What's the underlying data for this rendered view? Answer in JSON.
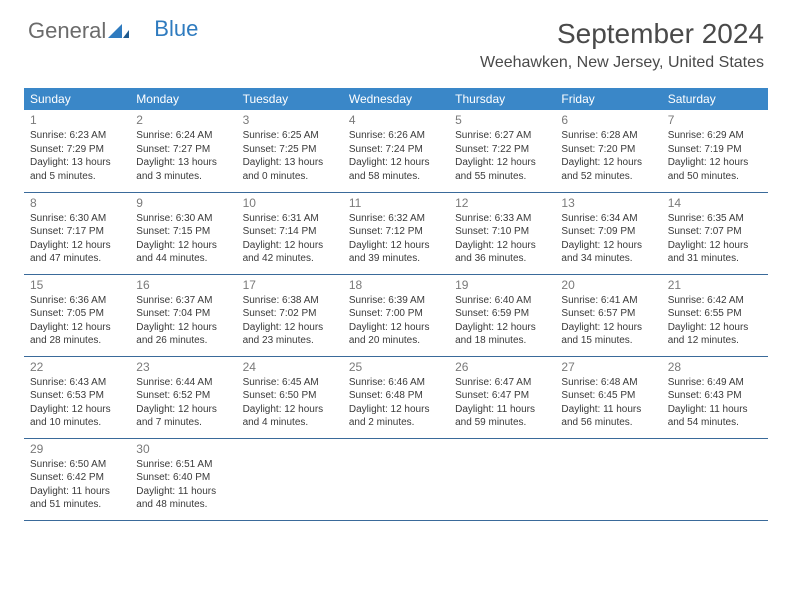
{
  "logo": {
    "text1": "General",
    "text2": "Blue"
  },
  "title": "September 2024",
  "location": "Weehawken, New Jersey, United States",
  "colors": {
    "header_bg": "#3a87c8",
    "header_text": "#ffffff",
    "row_border": "#3a6a9a",
    "daynum": "#7a7a7a",
    "bodytext": "#3a3a3a",
    "logo_gray": "#6b6b6b",
    "logo_blue": "#2f7bbf"
  },
  "daysOfWeek": [
    "Sunday",
    "Monday",
    "Tuesday",
    "Wednesday",
    "Thursday",
    "Friday",
    "Saturday"
  ],
  "weeks": [
    [
      {
        "n": "1",
        "sr": "Sunrise: 6:23 AM",
        "ss": "Sunset: 7:29 PM",
        "dl1": "Daylight: 13 hours",
        "dl2": "and 5 minutes."
      },
      {
        "n": "2",
        "sr": "Sunrise: 6:24 AM",
        "ss": "Sunset: 7:27 PM",
        "dl1": "Daylight: 13 hours",
        "dl2": "and 3 minutes."
      },
      {
        "n": "3",
        "sr": "Sunrise: 6:25 AM",
        "ss": "Sunset: 7:25 PM",
        "dl1": "Daylight: 13 hours",
        "dl2": "and 0 minutes."
      },
      {
        "n": "4",
        "sr": "Sunrise: 6:26 AM",
        "ss": "Sunset: 7:24 PM",
        "dl1": "Daylight: 12 hours",
        "dl2": "and 58 minutes."
      },
      {
        "n": "5",
        "sr": "Sunrise: 6:27 AM",
        "ss": "Sunset: 7:22 PM",
        "dl1": "Daylight: 12 hours",
        "dl2": "and 55 minutes."
      },
      {
        "n": "6",
        "sr": "Sunrise: 6:28 AM",
        "ss": "Sunset: 7:20 PM",
        "dl1": "Daylight: 12 hours",
        "dl2": "and 52 minutes."
      },
      {
        "n": "7",
        "sr": "Sunrise: 6:29 AM",
        "ss": "Sunset: 7:19 PM",
        "dl1": "Daylight: 12 hours",
        "dl2": "and 50 minutes."
      }
    ],
    [
      {
        "n": "8",
        "sr": "Sunrise: 6:30 AM",
        "ss": "Sunset: 7:17 PM",
        "dl1": "Daylight: 12 hours",
        "dl2": "and 47 minutes."
      },
      {
        "n": "9",
        "sr": "Sunrise: 6:30 AM",
        "ss": "Sunset: 7:15 PM",
        "dl1": "Daylight: 12 hours",
        "dl2": "and 44 minutes."
      },
      {
        "n": "10",
        "sr": "Sunrise: 6:31 AM",
        "ss": "Sunset: 7:14 PM",
        "dl1": "Daylight: 12 hours",
        "dl2": "and 42 minutes."
      },
      {
        "n": "11",
        "sr": "Sunrise: 6:32 AM",
        "ss": "Sunset: 7:12 PM",
        "dl1": "Daylight: 12 hours",
        "dl2": "and 39 minutes."
      },
      {
        "n": "12",
        "sr": "Sunrise: 6:33 AM",
        "ss": "Sunset: 7:10 PM",
        "dl1": "Daylight: 12 hours",
        "dl2": "and 36 minutes."
      },
      {
        "n": "13",
        "sr": "Sunrise: 6:34 AM",
        "ss": "Sunset: 7:09 PM",
        "dl1": "Daylight: 12 hours",
        "dl2": "and 34 minutes."
      },
      {
        "n": "14",
        "sr": "Sunrise: 6:35 AM",
        "ss": "Sunset: 7:07 PM",
        "dl1": "Daylight: 12 hours",
        "dl2": "and 31 minutes."
      }
    ],
    [
      {
        "n": "15",
        "sr": "Sunrise: 6:36 AM",
        "ss": "Sunset: 7:05 PM",
        "dl1": "Daylight: 12 hours",
        "dl2": "and 28 minutes."
      },
      {
        "n": "16",
        "sr": "Sunrise: 6:37 AM",
        "ss": "Sunset: 7:04 PM",
        "dl1": "Daylight: 12 hours",
        "dl2": "and 26 minutes."
      },
      {
        "n": "17",
        "sr": "Sunrise: 6:38 AM",
        "ss": "Sunset: 7:02 PM",
        "dl1": "Daylight: 12 hours",
        "dl2": "and 23 minutes."
      },
      {
        "n": "18",
        "sr": "Sunrise: 6:39 AM",
        "ss": "Sunset: 7:00 PM",
        "dl1": "Daylight: 12 hours",
        "dl2": "and 20 minutes."
      },
      {
        "n": "19",
        "sr": "Sunrise: 6:40 AM",
        "ss": "Sunset: 6:59 PM",
        "dl1": "Daylight: 12 hours",
        "dl2": "and 18 minutes."
      },
      {
        "n": "20",
        "sr": "Sunrise: 6:41 AM",
        "ss": "Sunset: 6:57 PM",
        "dl1": "Daylight: 12 hours",
        "dl2": "and 15 minutes."
      },
      {
        "n": "21",
        "sr": "Sunrise: 6:42 AM",
        "ss": "Sunset: 6:55 PM",
        "dl1": "Daylight: 12 hours",
        "dl2": "and 12 minutes."
      }
    ],
    [
      {
        "n": "22",
        "sr": "Sunrise: 6:43 AM",
        "ss": "Sunset: 6:53 PM",
        "dl1": "Daylight: 12 hours",
        "dl2": "and 10 minutes."
      },
      {
        "n": "23",
        "sr": "Sunrise: 6:44 AM",
        "ss": "Sunset: 6:52 PM",
        "dl1": "Daylight: 12 hours",
        "dl2": "and 7 minutes."
      },
      {
        "n": "24",
        "sr": "Sunrise: 6:45 AM",
        "ss": "Sunset: 6:50 PM",
        "dl1": "Daylight: 12 hours",
        "dl2": "and 4 minutes."
      },
      {
        "n": "25",
        "sr": "Sunrise: 6:46 AM",
        "ss": "Sunset: 6:48 PM",
        "dl1": "Daylight: 12 hours",
        "dl2": "and 2 minutes."
      },
      {
        "n": "26",
        "sr": "Sunrise: 6:47 AM",
        "ss": "Sunset: 6:47 PM",
        "dl1": "Daylight: 11 hours",
        "dl2": "and 59 minutes."
      },
      {
        "n": "27",
        "sr": "Sunrise: 6:48 AM",
        "ss": "Sunset: 6:45 PM",
        "dl1": "Daylight: 11 hours",
        "dl2": "and 56 minutes."
      },
      {
        "n": "28",
        "sr": "Sunrise: 6:49 AM",
        "ss": "Sunset: 6:43 PM",
        "dl1": "Daylight: 11 hours",
        "dl2": "and 54 minutes."
      }
    ],
    [
      {
        "n": "29",
        "sr": "Sunrise: 6:50 AM",
        "ss": "Sunset: 6:42 PM",
        "dl1": "Daylight: 11 hours",
        "dl2": "and 51 minutes."
      },
      {
        "n": "30",
        "sr": "Sunrise: 6:51 AM",
        "ss": "Sunset: 6:40 PM",
        "dl1": "Daylight: 11 hours",
        "dl2": "and 48 minutes."
      },
      null,
      null,
      null,
      null,
      null
    ]
  ]
}
